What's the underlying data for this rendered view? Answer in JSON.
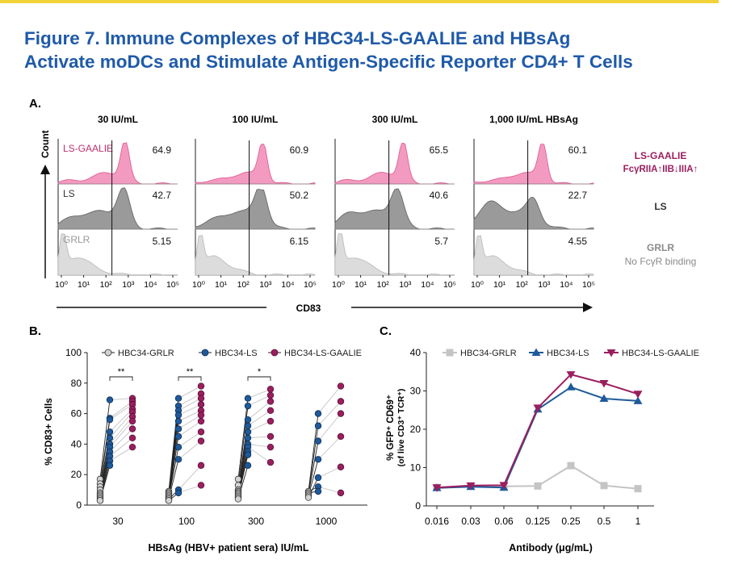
{
  "figure": {
    "title_line1": "Figure 7. Immune Complexes of HBC34-LS-GAALIE and HBsAg",
    "title_line2": "Activate moDCs and Stimulate Antigen-Specific Reporter CD4+ T Cells"
  },
  "panelA": {
    "label": "A.",
    "y_axis_label": "Count",
    "x_axis_label": "CD83",
    "tick_labels": [
      "10⁰",
      "10¹",
      "10²",
      "10³",
      "10⁴",
      "10⁵"
    ],
    "columns": [
      "30 IU/mL",
      "100 IU/mL",
      "300 IU/mL",
      "1,000 IU/mL HBsAg"
    ],
    "rows": [
      {
        "name": "LS-GAALIE",
        "color": "#e8558f",
        "values": [
          "64.9",
          "60.9",
          "65.5",
          "60.1"
        ]
      },
      {
        "name": "LS",
        "color": "#6e6e6e",
        "values": [
          "42.7",
          "50.2",
          "40.6",
          "22.7"
        ]
      },
      {
        "name": "GRLR",
        "color": "#b0b0b0",
        "values": [
          "5.15",
          "6.15",
          "5.7",
          "4.55"
        ]
      }
    ],
    "legend": {
      "gaalie_title": "LS-GAALIE",
      "gaalie_sub": "FcγRIIA↑IIB↓IIIA↑",
      "ls_title": "LS",
      "grlr_title": "GRLR",
      "grlr_sub": "No FcγR binding"
    }
  },
  "panelB": {
    "label": "B.",
    "chart_data": {
      "type": "scatter",
      "title": "",
      "xlabel": "HBsAg (HBV+ patient sera) IU/mL",
      "ylabel": "% CD83+ Cells",
      "ylim": [
        0,
        100
      ],
      "yticks": [
        "0",
        "20",
        "40",
        "60",
        "80",
        "100"
      ],
      "categories": [
        "30",
        "100",
        "300",
        "1000"
      ],
      "legend": [
        "HBC34-GRLR",
        "HBC34-LS",
        "HBC34-LS-GAALIE"
      ],
      "significance": [
        "**",
        "**",
        "*",
        ""
      ],
      "series": [
        {
          "name": "HBC34-GRLR",
          "color": "#c8c8c8",
          "values": [
            [
              17,
              14,
              12,
              10,
              8,
              7,
              6,
              5,
              4,
              3,
              3
            ],
            [
              9,
              8,
              8,
              7,
              6,
              6,
              5,
              5,
              4,
              4,
              3,
              3
            ],
            [
              17,
              13,
              10,
              9,
              8,
              8,
              7,
              6,
              5,
              5,
              4
            ],
            [
              9,
              8,
              7,
              6,
              5
            ]
          ]
        },
        {
          "name": "HBC34-LS",
          "color": "#1f5a9a",
          "values": [
            [
              69,
              57,
              56,
              48,
              44,
              40,
              38,
              35,
              32,
              29,
              26
            ],
            [
              70,
              65,
              62,
              59,
              55,
              50,
              45,
              38,
              30,
              10,
              8
            ],
            [
              70,
              65,
              56,
              52,
              48,
              44,
              40,
              38,
              35,
              33,
              26
            ],
            [
              60,
              52,
              42,
              30,
              18,
              12,
              9
            ]
          ]
        },
        {
          "name": "HBC34-LS-GAALIE",
          "color": "#9a1f5f",
          "values": [
            [
              70,
              68,
              66,
              63,
              61,
              58,
              55,
              50,
              44,
              38
            ],
            [
              78,
              73,
              70,
              66,
              62,
              59,
              55,
              48,
              42,
              26,
              13
            ],
            [
              76,
              72,
              68,
              62,
              55,
              45,
              38,
              28
            ],
            [
              78,
              68,
              60,
              45,
              25,
              8
            ]
          ]
        }
      ]
    }
  },
  "panelC": {
    "label": "C.",
    "chart_data": {
      "type": "line",
      "title": "",
      "xlabel": "Antibody (μg/mL)",
      "ylabel": "% GFP⁺ CD69⁺",
      "ylabel2": "(of live CD3⁺ TCR⁺)",
      "x": [
        "0.016",
        "0.03",
        "0.06",
        "0.125",
        "0.25",
        "0.5",
        "1"
      ],
      "ylim": [
        0,
        40
      ],
      "yticks": [
        "0",
        "10",
        "20",
        "30",
        "40"
      ],
      "series": [
        {
          "name": "HBC34-GRLR",
          "color": "#c4c4c4",
          "marker": "square",
          "values": [
            4.8,
            5.2,
            5.1,
            5.2,
            10.5,
            5.3,
            4.5
          ]
        },
        {
          "name": "HBC34-LS",
          "color": "#1f5a9a",
          "marker": "triangle-up",
          "values": [
            4.7,
            5.0,
            4.8,
            25.2,
            31.0,
            28.0,
            27.4
          ]
        },
        {
          "name": "HBC34-LS-GAALIE",
          "color": "#9a1f5f",
          "marker": "triangle-down",
          "values": [
            4.8,
            5.3,
            5.4,
            25.6,
            34.3,
            32.0,
            29.2
          ]
        }
      ]
    }
  }
}
